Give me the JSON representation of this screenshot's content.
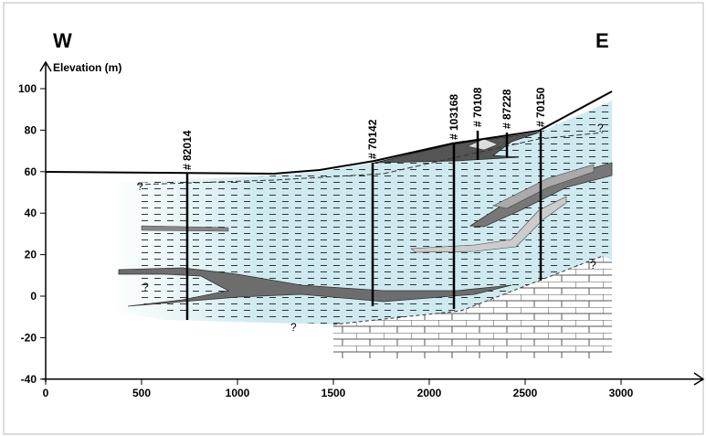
{
  "header": {
    "west": "W",
    "east": "E"
  },
  "y_axis": {
    "label": "Elevation (m)",
    "ticks": [
      100,
      80,
      60,
      40,
      20,
      0,
      -20,
      -40
    ]
  },
  "x_axis": {
    "ticks": [
      0,
      500,
      1000,
      1500,
      2000,
      2500,
      3000
    ]
  },
  "boreholes": [
    "# 82014",
    "# 70142",
    "# 103168",
    "# 70108",
    "# 87228",
    "# 70150"
  ],
  "question_marks": [
    "?",
    "?",
    "?",
    "?",
    "?"
  ]
}
